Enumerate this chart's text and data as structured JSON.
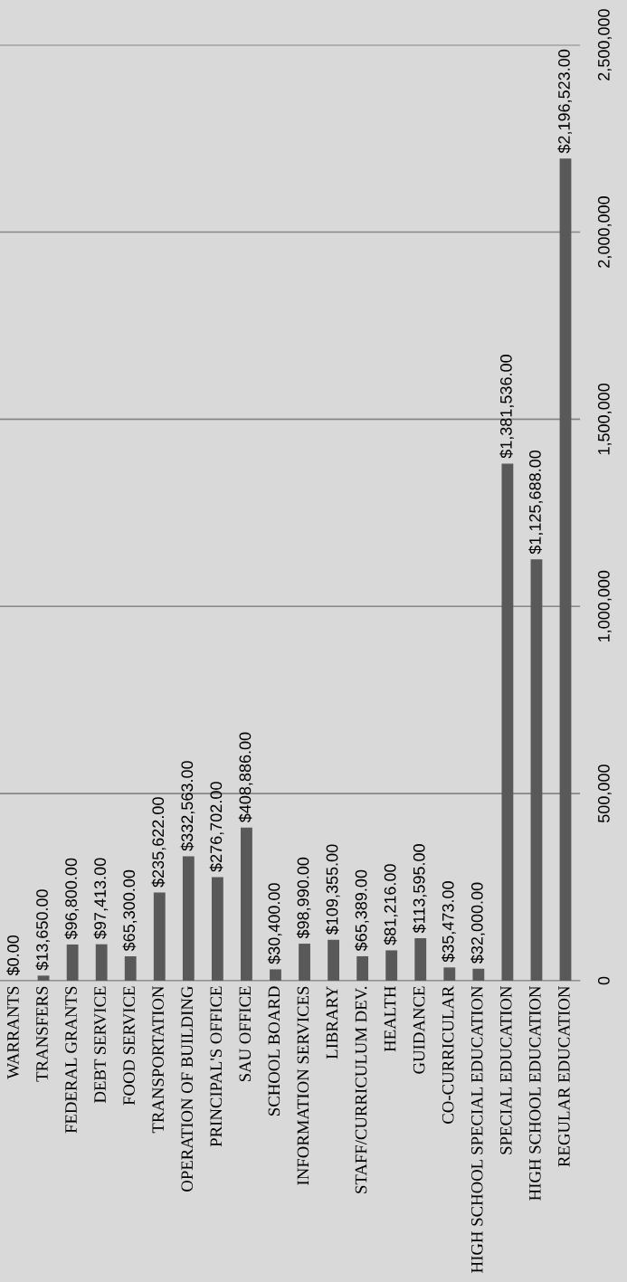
{
  "chart_data": {
    "type": "bar",
    "categories": [
      "WARRANTS",
      "TRANSFERS",
      "FEDERAL GRANTS",
      "DEBT SERVICE",
      "FOOD SERVICE",
      "TRANSPORTATION",
      "OPERATION OF BUILDING",
      "PRINCIPAL'S OFFICE",
      "SAU OFFICE",
      "SCHOOL BOARD",
      "INFORMATION SERVICES",
      "LIBRARY",
      "STAFF/CURRICULUM DEV.",
      "HEALTH",
      "GUIDANCE",
      "CO-CURRICULAR",
      "HIGH SCHOOL SPECIAL EDUCATION",
      "SPECIAL EDUCATION",
      "HIGH SCHOOL EDUCATION",
      "REGULAR EDUCATION"
    ],
    "values": [
      0,
      13650,
      96800,
      97413,
      65300,
      235622,
      332563,
      276702,
      408886,
      30400,
      98990,
      109355,
      65389,
      81216,
      113595,
      35473,
      32000,
      1381536,
      1125688,
      2196523
    ],
    "value_labels": [
      "$0.00",
      "$13,650.00",
      "$96,800.00",
      "$97,413.00",
      "$65,300.00",
      "$235,622.00",
      "$332,563.00",
      "$276,702.00",
      "$408,886.00",
      "$30,400.00",
      "$98,990.00",
      "$109,355.00",
      "$65,389.00",
      "$81,216.00",
      "$113,595.00",
      "$35,473.00",
      "$32,000.00",
      "$1,381,536.00",
      "$1,125,688.00",
      "$2,196,523.00"
    ],
    "color": "#595959",
    "ylim": [
      0,
      2500000
    ],
    "yticks": [
      {
        "value": 0,
        "label": "0"
      },
      {
        "value": 500000,
        "label": "500,000"
      },
      {
        "value": 1000000,
        "label": "1,000,000"
      },
      {
        "value": 1500000,
        "label": "1,500,000"
      },
      {
        "value": 2000000,
        "label": "2,000,000"
      },
      {
        "value": 2500000,
        "label": "2,500,000"
      }
    ],
    "grid": "y"
  }
}
